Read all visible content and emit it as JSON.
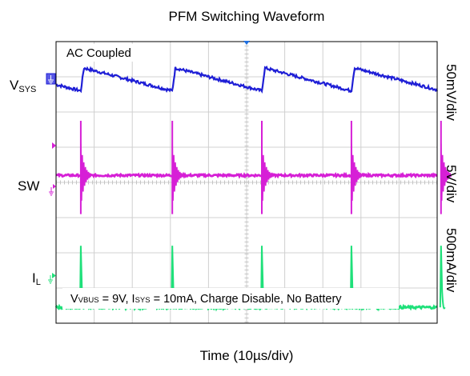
{
  "chart_data": {
    "type": "line",
    "title": "PFM Switching Waveform",
    "xlabel": "Time (10µs/div)",
    "x_divisions": 10,
    "y_divisions": 8,
    "grid": true,
    "overlay_text": "AC Coupled",
    "conditions": {
      "vbus_label": "V",
      "vbus_sub": "VBUS",
      "vbus_value": " = 9V",
      "separator": ", ",
      "isys_label": "I",
      "isys_sub": "SYS",
      "isys_value": " = 10mA, Charge Disable, No Battery"
    },
    "pulse_times_div": [
      0.65,
      3.05,
      5.4,
      7.75,
      10.1
    ],
    "series": [
      {
        "name": "V",
        "name_sub": "SYS",
        "scale": "50mV/div",
        "color": "#1f1fd6",
        "kind": "sawtooth",
        "level_div": 6.9
      },
      {
        "name": "SW",
        "name_sub": "",
        "scale": "5V/div",
        "color": "#d61fd6",
        "kind": "switch",
        "level_div": 4.2
      },
      {
        "name": "I",
        "name_sub": "L",
        "scale": "500mA/div",
        "color": "#1fe07a",
        "kind": "current",
        "level_div": 0.45
      }
    ]
  }
}
